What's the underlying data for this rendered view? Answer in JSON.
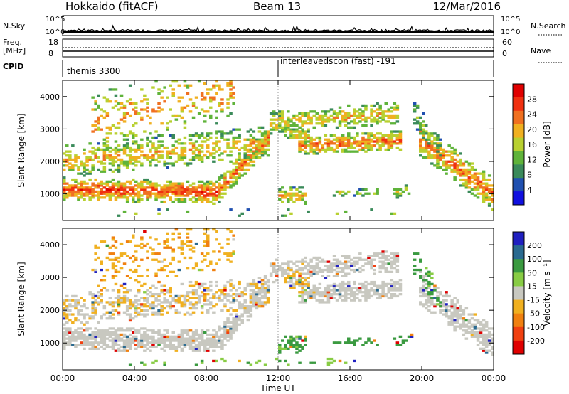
{
  "header": {
    "radar": "Hokkaido (fitACF)",
    "beam": "Beam 13",
    "date": "12/Mar/2016"
  },
  "meta_panels": {
    "nsky_label": "N.Sky",
    "nsearch_label": "N.Search",
    "nsky_ticks": [
      "10^5",
      "10^0"
    ],
    "nsearch_ticks": [
      "10^5",
      "10^0"
    ],
    "freq_label_top": "Freq.",
    "freq_label_bottom": "[MHz]",
    "freq_ticks": [
      "18",
      "8"
    ],
    "nave_label": "Nave",
    "nave_ticks": [
      "60",
      "0"
    ],
    "cpid_label": "CPID",
    "cpid_left": "themis 3300",
    "cpid_right": "interleavedscon (fast) -191"
  },
  "colors": {
    "frame": "#000000",
    "power_scale": [
      "#1010e0",
      "#2050b0",
      "#3a8a5a",
      "#5fb33a",
      "#b8d030",
      "#f0b020",
      "#f07020",
      "#f03010",
      "#e00000"
    ],
    "velocity_scale": [
      "#2020c0",
      "#2a6a90",
      "#3a9a40",
      "#88cc44",
      "#c8c8c0",
      "#f0b020",
      "#f08010",
      "#f04010",
      "#e00000"
    ]
  },
  "chart_data": [
    {
      "type": "heatmap",
      "name": "power",
      "ylabel": "Slant Range [km]",
      "colorbar_label": "Power [dB]",
      "colorbar_ticks": [
        "28",
        "24",
        "20",
        "16",
        "12",
        "8",
        "4"
      ],
      "x_range_hours": [
        0,
        24
      ],
      "y_range_km": [
        180,
        4500
      ],
      "yticks": [
        "4000",
        "3000",
        "2000",
        "1000"
      ],
      "ytick_values": [
        4000,
        3000,
        2000,
        1000
      ]
    },
    {
      "type": "heatmap",
      "name": "velocity",
      "ylabel": "Slant Range [km]",
      "colorbar_label": "Velocity [m s⁻¹]",
      "colorbar_ticks": [
        "200",
        "100",
        "50",
        "15",
        "-15",
        "-50",
        "-100",
        "-200"
      ],
      "x_range_hours": [
        0,
        24
      ],
      "y_range_km": [
        180,
        4500
      ],
      "yticks": [
        "4000",
        "3000",
        "2000",
        "1000"
      ],
      "ytick_values": [
        4000,
        3000,
        2000,
        1000
      ]
    }
  ],
  "time_axis": {
    "label": "Time UT",
    "ticks": [
      "00:00",
      "04:00",
      "08:00",
      "12:00",
      "16:00",
      "20:00",
      "00:00"
    ],
    "tick_hours": [
      0,
      4,
      8,
      12,
      16,
      20,
      24
    ]
  }
}
